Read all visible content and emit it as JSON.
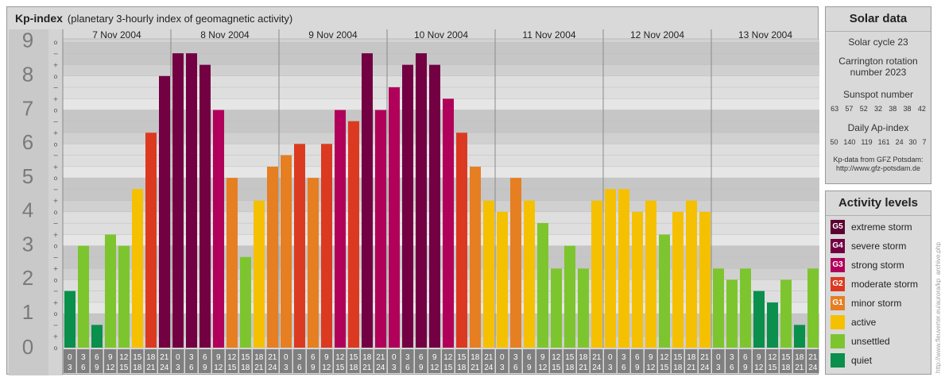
{
  "header": {
    "title": "Kp-index",
    "subtitle": "(planetary 3-hourly index of geomagnetic activity)"
  },
  "chart_data": {
    "type": "bar",
    "y_ticks": [
      "0",
      "1",
      "2",
      "3",
      "4",
      "5",
      "6",
      "7",
      "8",
      "9"
    ],
    "sub_ticks": [
      "o",
      "+",
      "−",
      "o",
      "+",
      "−",
      "o",
      "+",
      "−",
      "o",
      "+",
      "−",
      "o",
      "+",
      "−",
      "o",
      "+",
      "−",
      "o",
      "+",
      "−",
      "o",
      "+",
      "−",
      "o",
      "+",
      "−",
      "o"
    ],
    "days": [
      "7 Nov 2004",
      "8 Nov 2004",
      "9 Nov 2004",
      "10 Nov 2004",
      "11 Nov 2004",
      "12 Nov 2004",
      "13 Nov 2004"
    ],
    "hour_labels": [
      [
        "0",
        "3"
      ],
      [
        "3",
        "6"
      ],
      [
        "6",
        "9"
      ],
      [
        "9",
        "12"
      ],
      [
        "12",
        "15"
      ],
      [
        "15",
        "18"
      ],
      [
        "18",
        "21"
      ],
      [
        "21",
        "24"
      ]
    ],
    "ylim": [
      0,
      9
    ],
    "values": [
      1.67,
      3.0,
      0.67,
      3.33,
      3.0,
      4.67,
      6.33,
      8.0,
      8.67,
      8.67,
      8.33,
      7.0,
      5.0,
      2.67,
      4.33,
      5.33,
      5.67,
      6.0,
      5.0,
      6.0,
      7.0,
      6.67,
      8.67,
      7.0,
      7.67,
      8.33,
      8.67,
      8.33,
      7.33,
      6.33,
      5.33,
      4.33,
      4.0,
      5.0,
      4.33,
      3.67,
      2.33,
      3.0,
      2.33,
      4.33,
      4.67,
      4.67,
      4.0,
      4.33,
      3.33,
      4.0,
      4.33,
      4.0,
      2.33,
      2.0,
      2.33,
      1.67,
      1.33,
      2.0,
      0.67,
      2.33
    ],
    "colors": {
      "G5": "#5c0031",
      "G4": "#720042",
      "G3": "#b0005a",
      "G2": "#db3a21",
      "G1": "#e67e22",
      "active": "#f5c000",
      "unsettled": "#7dc52e",
      "quiet": "#0a8f4c"
    }
  },
  "solar": {
    "heading": "Solar data",
    "cycle": "Solar cycle 23",
    "carrington_1": "Carrington rotation",
    "carrington_2": "number 2023",
    "sunspot_heading": "Sunspot number",
    "sunspots": [
      "63",
      "57",
      "52",
      "32",
      "38",
      "38",
      "42"
    ],
    "ap_heading": "Daily Ap-index",
    "ap": [
      "50",
      "140",
      "119",
      "161",
      "24",
      "30",
      "7"
    ],
    "source_1": "Kp-data from GFZ Potsdam:",
    "source_2": "http://www.gfz-potsdam.de"
  },
  "activity": {
    "heading": "Activity levels",
    "items": [
      {
        "badge": "G5",
        "label": "extreme storm",
        "color": "#5c0031"
      },
      {
        "badge": "G4",
        "label": "severe storm",
        "color": "#720042"
      },
      {
        "badge": "G3",
        "label": "strong storm",
        "color": "#b0005a"
      },
      {
        "badge": "G2",
        "label": "moderate storm",
        "color": "#db3a21"
      },
      {
        "badge": "G1",
        "label": "minor storm",
        "color": "#e67e22"
      },
      {
        "badge": "",
        "label": "active",
        "color": "#f5c000"
      },
      {
        "badge": "",
        "label": "unsettled",
        "color": "#7dc52e"
      },
      {
        "badge": "",
        "label": "quiet",
        "color": "#0a8f4c"
      }
    ]
  },
  "credit": "http://www.fleuverter.eu/aurora/kp_archive.php"
}
